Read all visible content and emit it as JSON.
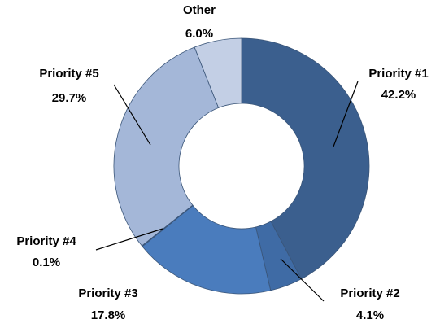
{
  "chart_data": {
    "type": "donut",
    "categories": [
      "Priority #1",
      "Priority #2",
      "Priority #3",
      "Priority #4",
      "Priority #5",
      "Other"
    ],
    "values": [
      42.2,
      4.1,
      17.8,
      0.1,
      29.7,
      6.0
    ],
    "value_labels": [
      "42.2%",
      "4.1%",
      "17.8%",
      "0.1%",
      "29.7%",
      "6.0%"
    ],
    "colors": [
      "#3b5f8e",
      "#3f6ba5",
      "#4a7cbd",
      "#5a86c4",
      "#a4b7d8",
      "#c3cfe5"
    ]
  }
}
